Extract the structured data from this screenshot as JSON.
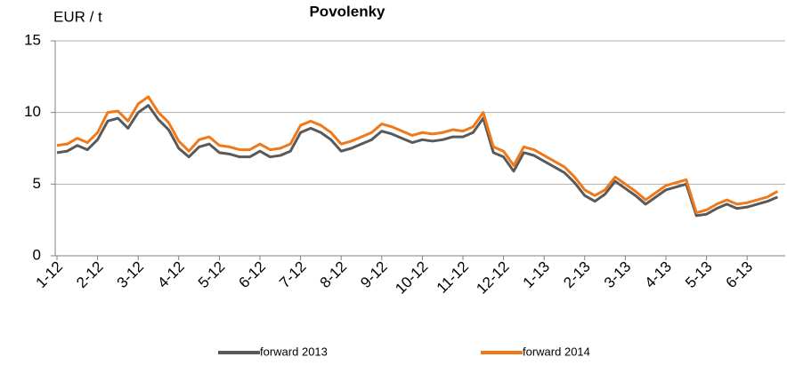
{
  "chart_data": {
    "type": "line",
    "title": "Povolenky",
    "y_label": "EUR / t",
    "categories": [
      "1-12",
      null,
      null,
      null,
      "2-12",
      null,
      null,
      null,
      "3-12",
      null,
      null,
      null,
      "4-12",
      null,
      null,
      null,
      "5-12",
      null,
      null,
      null,
      "6-12",
      null,
      null,
      null,
      "7-12",
      null,
      null,
      null,
      "8-12",
      null,
      null,
      null,
      "9-12",
      null,
      null,
      null,
      "10-12",
      null,
      null,
      null,
      "11-12",
      null,
      null,
      null,
      "12-12",
      null,
      null,
      null,
      "1-13",
      null,
      null,
      null,
      "2-13",
      null,
      null,
      null,
      "3-13",
      null,
      null,
      null,
      "4-13",
      null,
      null,
      null,
      "5-13",
      null,
      null,
      null,
      "6-13",
      null,
      null,
      null
    ],
    "series": [
      {
        "name": "forward 2013",
        "color": "#595959",
        "values": [
          7.2,
          7.3,
          7.7,
          7.4,
          8.1,
          9.4,
          9.6,
          8.9,
          10.0,
          10.5,
          9.5,
          8.8,
          7.5,
          6.9,
          7.6,
          7.8,
          7.2,
          7.1,
          6.9,
          6.9,
          7.3,
          6.9,
          7.0,
          7.3,
          8.6,
          8.9,
          8.6,
          8.1,
          7.3,
          7.5,
          7.8,
          8.1,
          8.7,
          8.5,
          8.2,
          7.9,
          8.1,
          8.0,
          8.1,
          8.3,
          8.3,
          8.6,
          9.6,
          7.2,
          6.9,
          5.9,
          7.2,
          7.0,
          6.6,
          6.2,
          5.8,
          5.1,
          4.2,
          3.8,
          4.3,
          5.2,
          4.7,
          4.2,
          3.6,
          4.1,
          4.6,
          4.8,
          5.0,
          2.8,
          2.9,
          3.3,
          3.6,
          3.3,
          3.4,
          3.6,
          3.8,
          4.1
        ]
      },
      {
        "name": "forward 2014",
        "color": "#f07818",
        "values": [
          7.7,
          7.8,
          8.2,
          7.9,
          8.6,
          10.0,
          10.1,
          9.4,
          10.6,
          11.1,
          10.0,
          9.3,
          8.0,
          7.3,
          8.1,
          8.3,
          7.7,
          7.6,
          7.4,
          7.4,
          7.8,
          7.4,
          7.5,
          7.8,
          9.1,
          9.4,
          9.1,
          8.6,
          7.8,
          8.0,
          8.3,
          8.6,
          9.2,
          9.0,
          8.7,
          8.4,
          8.6,
          8.5,
          8.6,
          8.8,
          8.7,
          9.0,
          10.0,
          7.6,
          7.3,
          6.3,
          7.6,
          7.4,
          7.0,
          6.6,
          6.2,
          5.5,
          4.6,
          4.2,
          4.6,
          5.5,
          5.0,
          4.5,
          3.9,
          4.4,
          4.9,
          5.1,
          5.3,
          3.0,
          3.2,
          3.6,
          3.9,
          3.6,
          3.7,
          3.9,
          4.1,
          4.5
        ]
      }
    ],
    "ylim": [
      0,
      15
    ],
    "yticks": [
      0,
      5,
      10,
      15
    ],
    "grid": true,
    "legend": "bottom"
  }
}
